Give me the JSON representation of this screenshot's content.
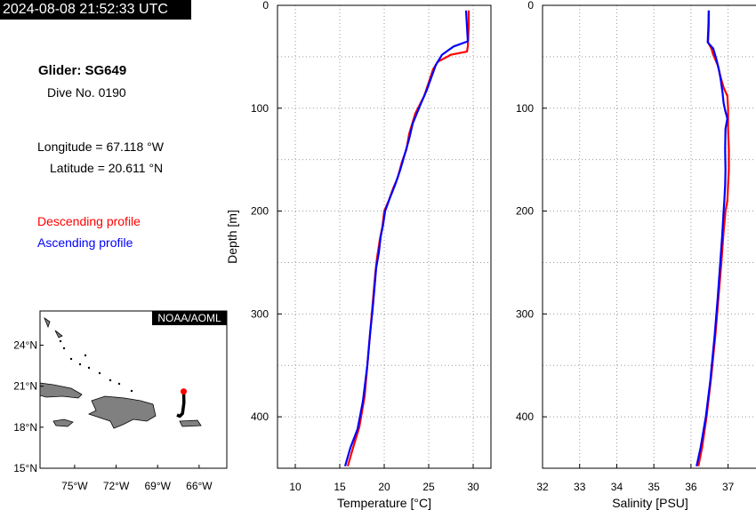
{
  "timestamp": "2024-08-08 21:52:33 UTC",
  "info": {
    "glider": "Glider: SG649",
    "dive": "Dive No. 0190",
    "longitude": "Longitude = 67.118 °W",
    "latitude": "Latitude = 20.611 °N"
  },
  "legend": {
    "descending": "Descending profile",
    "ascending": "Ascending profile"
  },
  "colors": {
    "descending": "#ff0000",
    "ascending": "#0000ff",
    "track": "#000000",
    "land": "#808080"
  },
  "map": {
    "badge": "NOAA/AOML",
    "lat_ticks": [
      "24°N",
      "21°N",
      "18°N",
      "15°N"
    ],
    "lon_ticks": [
      "75°W",
      "72°W",
      "69°W",
      "66°W"
    ],
    "lat_range": [
      15,
      26.5
    ],
    "lon_range": [
      -77.5,
      -64
    ],
    "glider_position": {
      "lon": -67.118,
      "lat": 20.611
    },
    "track": [
      [
        -67.118,
        20.611
      ],
      [
        -67.1,
        19.8
      ],
      [
        -67.2,
        19.0
      ],
      [
        -67.4,
        18.8
      ],
      [
        -67.6,
        18.9
      ]
    ]
  },
  "chart_data": [
    {
      "type": "line",
      "xlabel": "Temperature [°C]",
      "ylabel": "Depth [m]",
      "xlim": [
        8,
        32
      ],
      "ylim": [
        450,
        0
      ],
      "x_ticks": [
        "10",
        "15",
        "20",
        "25",
        "30"
      ],
      "y_ticks": [
        "0",
        "100",
        "200",
        "300",
        "400"
      ],
      "grid": true,
      "series": [
        {
          "name": "Descending profile",
          "points": [
            [
              29.5,
              5
            ],
            [
              29.5,
              20
            ],
            [
              29.4,
              40
            ],
            [
              29.3,
              45
            ],
            [
              27.5,
              48
            ],
            [
              26,
              55
            ],
            [
              25.5,
              62
            ],
            [
              25,
              75
            ],
            [
              24.5,
              88
            ],
            [
              23.5,
              105
            ],
            [
              22.8,
              125
            ],
            [
              22.5,
              140
            ],
            [
              22,
              152
            ],
            [
              21.5,
              168
            ],
            [
              21,
              178
            ],
            [
              20.5,
              190
            ],
            [
              20,
              200
            ],
            [
              19.8,
              215
            ],
            [
              19.5,
              228
            ],
            [
              19.2,
              245
            ],
            [
              19,
              260
            ],
            [
              18.8,
              280
            ],
            [
              18.6,
              300
            ],
            [
              18.2,
              340
            ],
            [
              17.8,
              380
            ],
            [
              17.2,
              410
            ],
            [
              16.5,
              430
            ],
            [
              15.9,
              448
            ]
          ]
        },
        {
          "name": "Ascending profile",
          "points": [
            [
              29.2,
              5
            ],
            [
              29.3,
              20
            ],
            [
              29.4,
              35
            ],
            [
              27.8,
              40
            ],
            [
              26.5,
              48
            ],
            [
              25.8,
              58
            ],
            [
              25.3,
              70
            ],
            [
              24.8,
              82
            ],
            [
              24,
              98
            ],
            [
              23.2,
              115
            ],
            [
              22.8,
              130
            ],
            [
              22.3,
              145
            ],
            [
              21.8,
              160
            ],
            [
              21.2,
              175
            ],
            [
              20.6,
              188
            ],
            [
              20.1,
              200
            ],
            [
              19.9,
              212
            ],
            [
              19.6,
              225
            ],
            [
              19.4,
              240
            ],
            [
              19.1,
              255
            ],
            [
              18.9,
              275
            ],
            [
              18.7,
              295
            ],
            [
              18.4,
              320
            ],
            [
              18.1,
              350
            ],
            [
              17.6,
              385
            ],
            [
              17.0,
              412
            ],
            [
              16.2,
              430
            ],
            [
              15.6,
              448
            ]
          ]
        }
      ]
    },
    {
      "type": "line",
      "xlabel": "Salinity [PSU]",
      "ylabel": "",
      "xlim": [
        32,
        37.8
      ],
      "ylim": [
        450,
        0
      ],
      "x_ticks": [
        "32",
        "33",
        "34",
        "35",
        "36",
        "37"
      ],
      "y_ticks": [
        "0",
        "100",
        "200",
        "300",
        "400"
      ],
      "grid": true,
      "series": [
        {
          "name": "Descending profile",
          "points": [
            [
              36.48,
              5
            ],
            [
              36.48,
              20
            ],
            [
              36.46,
              36
            ],
            [
              36.55,
              42
            ],
            [
              36.6,
              48
            ],
            [
              36.72,
              58
            ],
            [
              36.8,
              70
            ],
            [
              36.88,
              80
            ],
            [
              36.98,
              88
            ],
            [
              37.0,
              100
            ],
            [
              37.0,
              120
            ],
            [
              37.02,
              140
            ],
            [
              37.02,
              160
            ],
            [
              37.0,
              175
            ],
            [
              36.98,
              190
            ],
            [
              36.93,
              200
            ],
            [
              36.88,
              220
            ],
            [
              36.82,
              250
            ],
            [
              36.75,
              280
            ],
            [
              36.66,
              320
            ],
            [
              36.55,
              360
            ],
            [
              36.42,
              400
            ],
            [
              36.3,
              430
            ],
            [
              36.2,
              448
            ]
          ]
        },
        {
          "name": "Ascending profile",
          "points": [
            [
              36.48,
              5
            ],
            [
              36.47,
              20
            ],
            [
              36.45,
              36
            ],
            [
              36.6,
              42
            ],
            [
              36.68,
              52
            ],
            [
              36.75,
              62
            ],
            [
              36.8,
              72
            ],
            [
              36.85,
              85
            ],
            [
              36.88,
              95
            ],
            [
              36.92,
              102
            ],
            [
              36.98,
              110
            ],
            [
              36.93,
              120
            ],
            [
              36.92,
              140
            ],
            [
              36.93,
              160
            ],
            [
              36.92,
              175
            ],
            [
              36.9,
              190
            ],
            [
              36.88,
              200
            ],
            [
              36.84,
              225
            ],
            [
              36.78,
              255
            ],
            [
              36.72,
              285
            ],
            [
              36.64,
              320
            ],
            [
              36.52,
              365
            ],
            [
              36.4,
              400
            ],
            [
              36.26,
              430
            ],
            [
              36.15,
              448
            ]
          ]
        }
      ]
    }
  ]
}
